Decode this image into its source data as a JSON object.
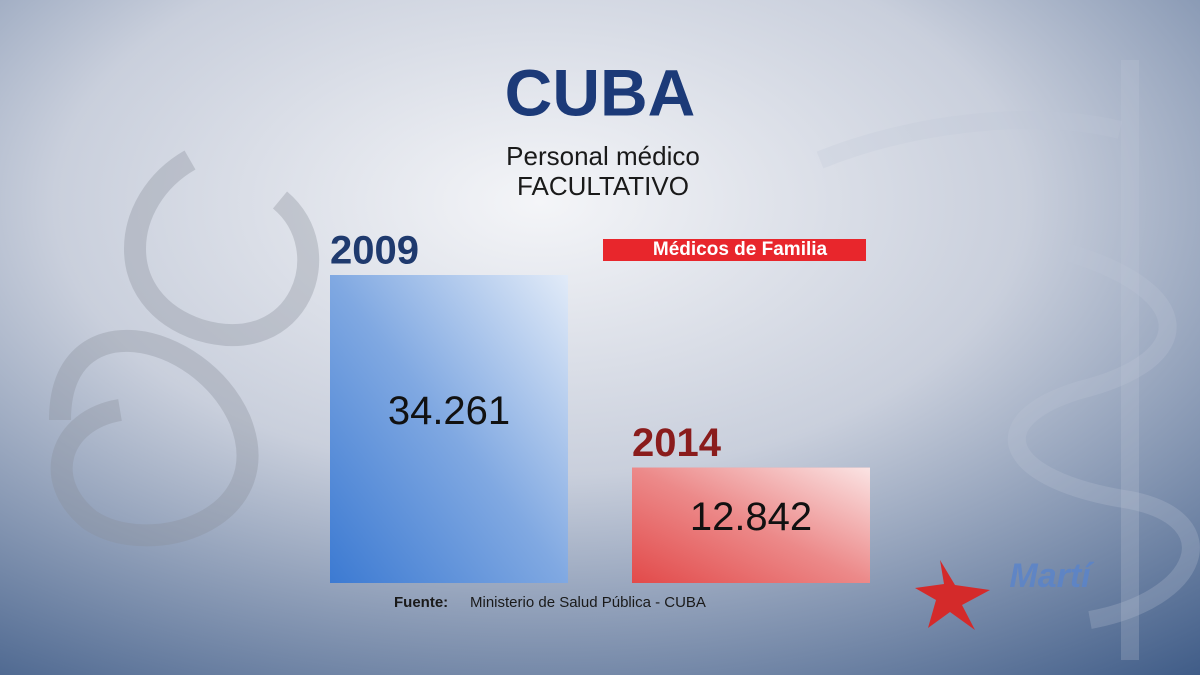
{
  "chart_data": {
    "type": "bar",
    "title": "CUBA",
    "subtitle": [
      "Personal médico",
      "FACULTATIVO"
    ],
    "annotation": "Médicos de Familia",
    "categories": [
      "2009",
      "2014"
    ],
    "values": [
      34261,
      12842
    ],
    "value_labels": [
      "34.261",
      "12.842"
    ],
    "colors": [
      "#3c7ad2",
      "#e24a4a"
    ],
    "category_colors": [
      "#1f3a6e",
      "#8a1c1c"
    ],
    "source": {
      "label": "Fuente:",
      "text": "Ministerio de Salud Pública - CUBA"
    },
    "logo": "Martí"
  }
}
